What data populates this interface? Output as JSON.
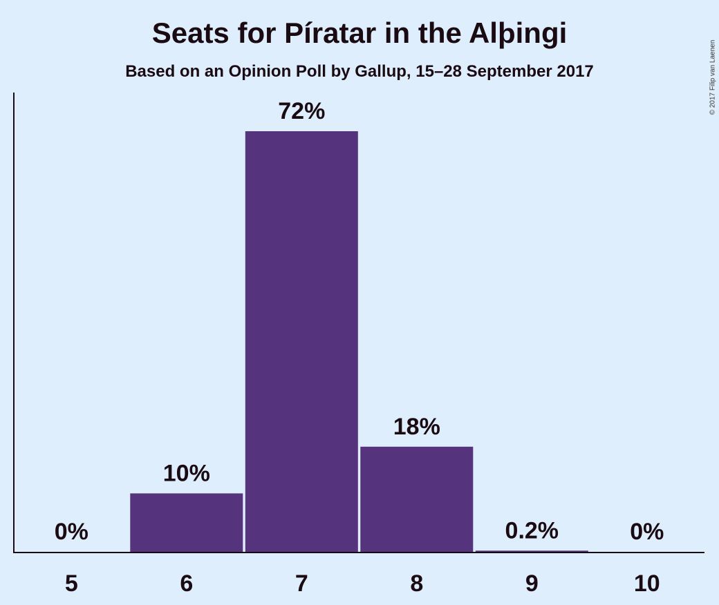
{
  "title": "Seats for Píratar in the Alþingi",
  "subtitle": "Based on an Opinion Poll by Gallup, 15–28 September 2017",
  "copyright": "© 2017 Filip van Laenen",
  "colors": {
    "background": "#dfeefc",
    "bar": "#55337d",
    "text": "#1a0a12"
  },
  "chart_data": {
    "type": "bar",
    "title": "Seats for Píratar in the Alþingi",
    "subtitle": "Based on an Opinion Poll by Gallup, 15–28 September 2017",
    "categories": [
      "5",
      "6",
      "7",
      "8",
      "9",
      "10"
    ],
    "values": [
      0,
      10,
      72,
      18,
      0.2,
      0
    ],
    "value_labels": [
      "0%",
      "10%",
      "72%",
      "18%",
      "0.2%",
      "0%"
    ],
    "unit": "%",
    "xlabel": "",
    "ylabel": "",
    "ylim": [
      0,
      79
    ],
    "grid": false,
    "legend": "none"
  }
}
